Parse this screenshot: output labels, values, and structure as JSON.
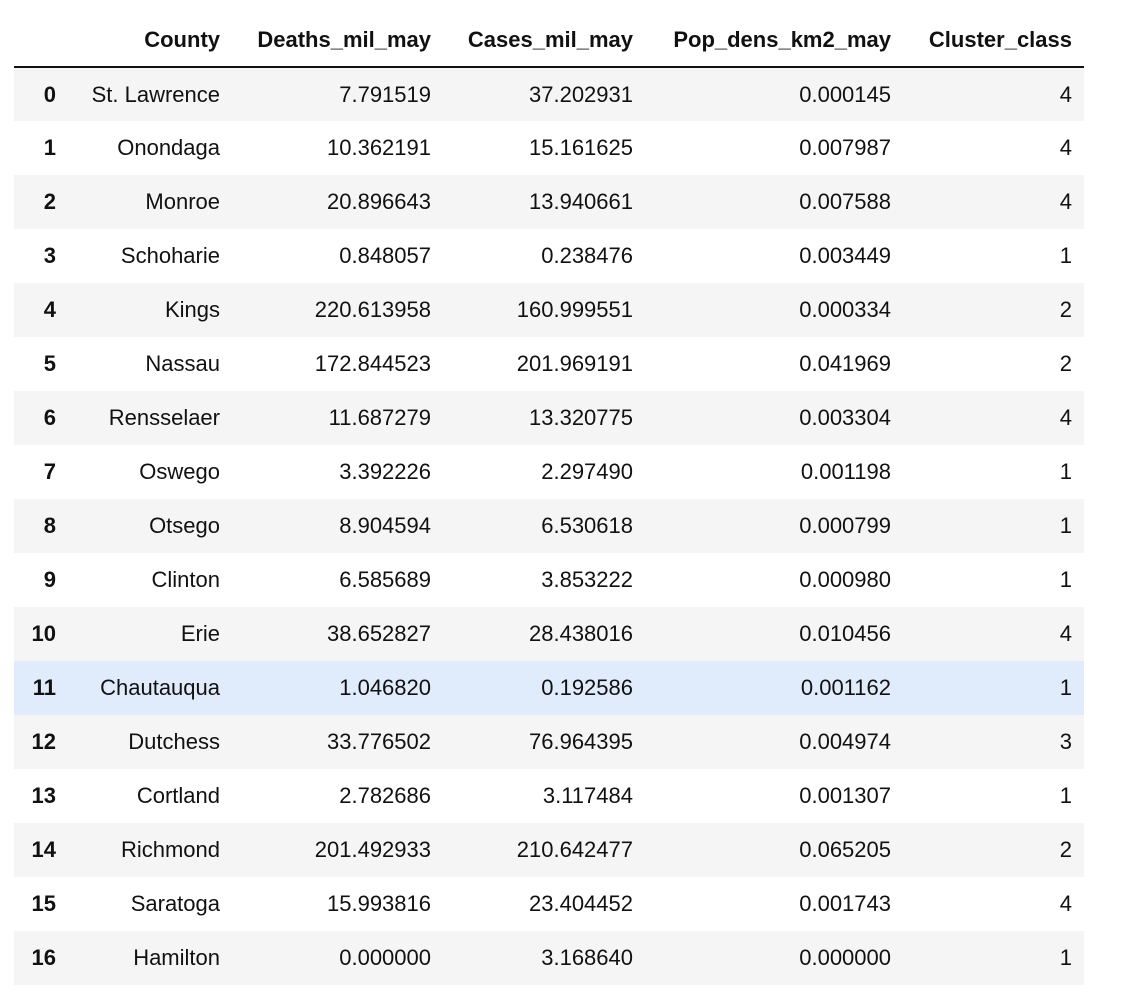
{
  "table": {
    "index_header": "",
    "columns": [
      "County",
      "Deaths_mil_may",
      "Cases_mil_may",
      "Pop_dens_km2_may",
      "Cluster_class"
    ],
    "highlighted_row": 11,
    "highlight_color": "#e0ebfb",
    "stripe_color": "#f5f5f5",
    "rows": [
      {
        "index": "0",
        "cells": [
          "St. Lawrence",
          "7.791519",
          "37.202931",
          "0.000145",
          "4"
        ]
      },
      {
        "index": "1",
        "cells": [
          "Onondaga",
          "10.362191",
          "15.161625",
          "0.007987",
          "4"
        ]
      },
      {
        "index": "2",
        "cells": [
          "Monroe",
          "20.896643",
          "13.940661",
          "0.007588",
          "4"
        ]
      },
      {
        "index": "3",
        "cells": [
          "Schoharie",
          "0.848057",
          "0.238476",
          "0.003449",
          "1"
        ]
      },
      {
        "index": "4",
        "cells": [
          "Kings",
          "220.613958",
          "160.999551",
          "0.000334",
          "2"
        ]
      },
      {
        "index": "5",
        "cells": [
          "Nassau",
          "172.844523",
          "201.969191",
          "0.041969",
          "2"
        ]
      },
      {
        "index": "6",
        "cells": [
          "Rensselaer",
          "11.687279",
          "13.320775",
          "0.003304",
          "4"
        ]
      },
      {
        "index": "7",
        "cells": [
          "Oswego",
          "3.392226",
          "2.297490",
          "0.001198",
          "1"
        ]
      },
      {
        "index": "8",
        "cells": [
          "Otsego",
          "8.904594",
          "6.530618",
          "0.000799",
          "1"
        ]
      },
      {
        "index": "9",
        "cells": [
          "Clinton",
          "6.585689",
          "3.853222",
          "0.000980",
          "1"
        ]
      },
      {
        "index": "10",
        "cells": [
          "Erie",
          "38.652827",
          "28.438016",
          "0.010456",
          "4"
        ]
      },
      {
        "index": "11",
        "cells": [
          "Chautauqua",
          "1.046820",
          "0.192586",
          "0.001162",
          "1"
        ]
      },
      {
        "index": "12",
        "cells": [
          "Dutchess",
          "33.776502",
          "76.964395",
          "0.004974",
          "3"
        ]
      },
      {
        "index": "13",
        "cells": [
          "Cortland",
          "2.782686",
          "3.117484",
          "0.001307",
          "1"
        ]
      },
      {
        "index": "14",
        "cells": [
          "Richmond",
          "201.492933",
          "210.642477",
          "0.065205",
          "2"
        ]
      },
      {
        "index": "15",
        "cells": [
          "Saratoga",
          "15.993816",
          "23.404452",
          "0.001743",
          "4"
        ]
      },
      {
        "index": "16",
        "cells": [
          "Hamilton",
          "0.000000",
          "3.168640",
          "0.000000",
          "1"
        ]
      }
    ]
  }
}
